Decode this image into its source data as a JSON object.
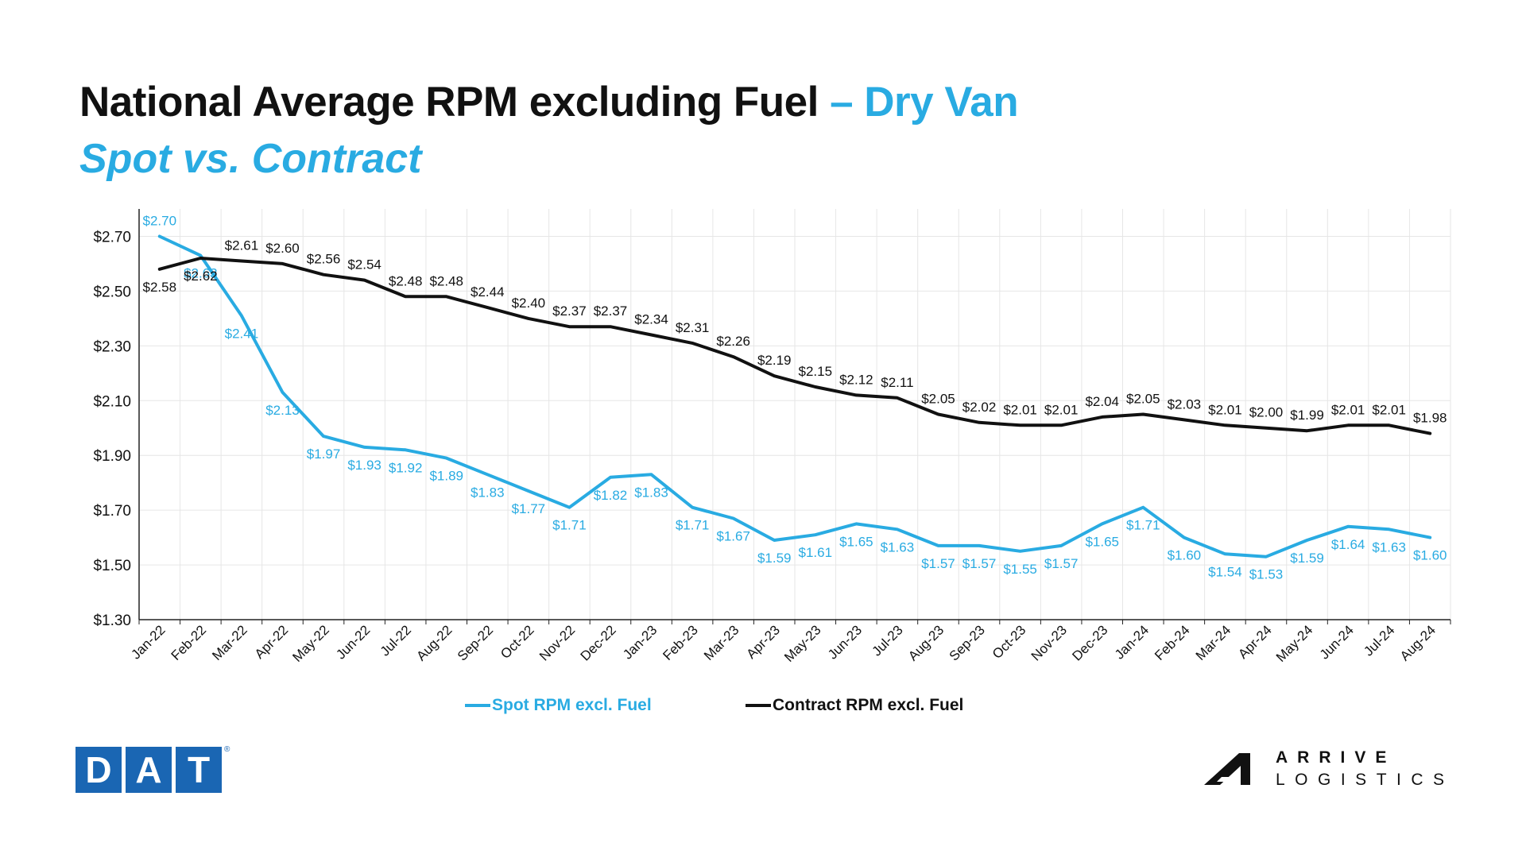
{
  "header": {
    "title": "National Average RPM excluding Fuel",
    "title_accent": "– Dry Van",
    "subtitle": "Spot vs. Contract"
  },
  "colors": {
    "spot": "#29abe2",
    "contract": "#111111",
    "dat_blue": "#1a66b3",
    "grid": "#e6e6e6"
  },
  "chart_data": {
    "type": "line",
    "title": "National Average RPM excluding Fuel – Dry Van",
    "subtitle": "Spot vs. Contract",
    "xlabel": "",
    "ylabel": "",
    "ylim": [
      1.3,
      2.8
    ],
    "y_ticks": [
      1.3,
      1.5,
      1.7,
      1.9,
      2.1,
      2.3,
      2.5,
      2.7
    ],
    "y_tick_labels": [
      "$1.30",
      "$1.50",
      "$1.70",
      "$1.90",
      "$2.10",
      "$2.30",
      "$2.50",
      "$2.70"
    ],
    "grid": true,
    "legend_position": "bottom",
    "categories": [
      "Jan-22",
      "Feb-22",
      "Mar-22",
      "Apr-22",
      "May-22",
      "Jun-22",
      "Jul-22",
      "Aug-22",
      "Sep-22",
      "Oct-22",
      "Nov-22",
      "Dec-22",
      "Jan-23",
      "Feb-23",
      "Mar-23",
      "Apr-23",
      "May-23",
      "Jun-23",
      "Jul-23",
      "Aug-23",
      "Sep-23",
      "Oct-23",
      "Nov-23",
      "Dec-23",
      "Jan-24",
      "Feb-24",
      "Mar-24",
      "Apr-24",
      "May-24",
      "Jun-24",
      "Jul-24",
      "Aug-24"
    ],
    "series": [
      {
        "name": "Spot RPM excl. Fuel",
        "values": [
          2.7,
          2.63,
          2.41,
          2.13,
          1.97,
          1.93,
          1.92,
          1.89,
          1.83,
          1.77,
          1.71,
          1.82,
          1.83,
          1.71,
          1.67,
          1.59,
          1.61,
          1.65,
          1.63,
          1.57,
          1.57,
          1.55,
          1.57,
          1.65,
          1.71,
          1.6,
          1.54,
          1.53,
          1.59,
          1.64,
          1.63,
          1.6
        ],
        "labels": [
          "$2.70",
          "$2.63",
          "$2.41",
          "$2.13",
          "$1.97",
          "$1.93",
          "$1.92",
          "$1.89",
          "$1.83",
          "$1.77",
          "$1.71",
          "$1.82",
          "$1.83",
          "$1.71",
          "$1.67",
          "$1.59",
          "$1.61",
          "$1.65",
          "$1.63",
          "$1.57",
          "$1.57",
          "$1.55",
          "$1.57",
          "$1.65",
          "$1.71",
          "$1.60",
          "$1.54",
          "$1.53",
          "$1.59",
          "$1.64",
          "$1.63",
          "$1.60"
        ]
      },
      {
        "name": "Contract RPM excl. Fuel",
        "values": [
          2.58,
          2.62,
          2.61,
          2.6,
          2.56,
          2.54,
          2.48,
          2.48,
          2.44,
          2.4,
          2.37,
          2.37,
          2.34,
          2.31,
          2.26,
          2.19,
          2.15,
          2.12,
          2.11,
          2.05,
          2.02,
          2.01,
          2.01,
          2.04,
          2.05,
          2.03,
          2.01,
          2.0,
          1.99,
          2.01,
          2.01,
          1.98
        ],
        "labels": [
          "$2.58",
          "$2.62",
          "$2.61",
          "$2.60",
          "$2.56",
          "$2.54",
          "$2.48",
          "$2.48",
          "$2.44",
          "$2.40",
          "$2.37",
          "$2.37",
          "$2.34",
          "$2.31",
          "$2.26",
          "$2.19",
          "$2.15",
          "$2.12",
          "$2.11",
          "$2.05",
          "$2.02",
          "$2.01",
          "$2.01",
          "$2.04",
          "$2.05",
          "$2.03",
          "$2.01",
          "$2.00",
          "$1.99",
          "$2.01",
          "$2.01",
          "$1.98"
        ]
      }
    ]
  },
  "logos": {
    "dat_letters": [
      "D",
      "A",
      "T"
    ],
    "dat_mark": "®",
    "arrive_line1": "ARRIVE",
    "arrive_line2": "LOGISTICS"
  }
}
